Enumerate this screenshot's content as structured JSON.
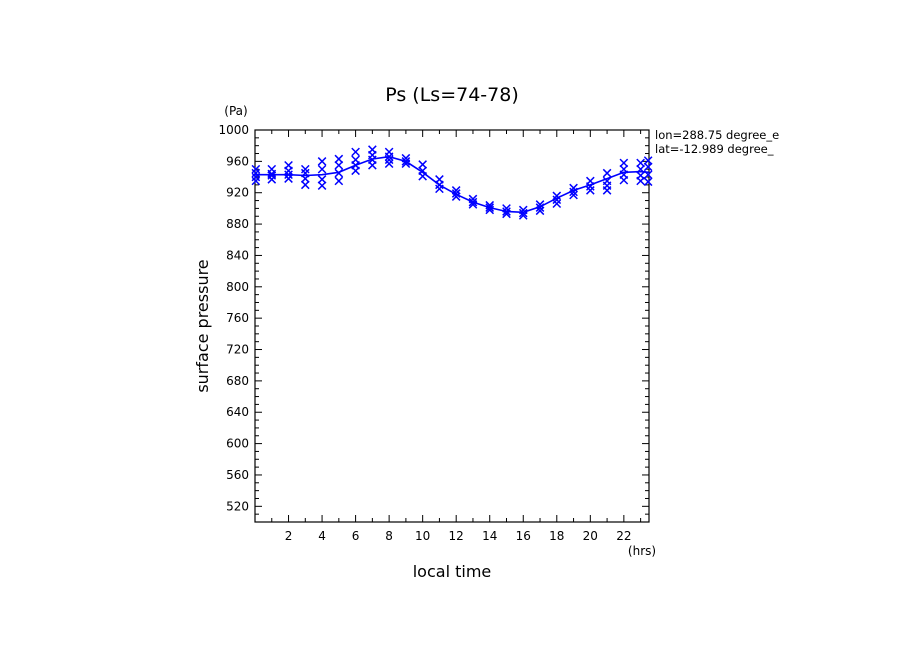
{
  "chart_data": {
    "type": "line",
    "title": "Ps (Ls=74-78)",
    "xlabel": "local time",
    "ylabel": "surface pressure",
    "xunit": "(hrs)",
    "yunit": "(Pa)",
    "xlim": [
      0,
      23.5
    ],
    "ylim": [
      500,
      1000
    ],
    "xticks": [
      "2",
      "4",
      "6",
      "8",
      "10",
      "12",
      "14",
      "16",
      "18",
      "20",
      "22"
    ],
    "yticks": [
      "520",
      "560",
      "600",
      "640",
      "680",
      "720",
      "760",
      "800",
      "840",
      "880",
      "920",
      "960",
      "1000"
    ],
    "annotations": [
      "lon=288.75 degree_e",
      "lat=-12.989 degree_"
    ],
    "color": "#0000ff",
    "series": [
      {
        "kind": "line",
        "x": [
          0,
          1,
          2,
          3,
          4,
          5,
          6,
          7,
          8,
          9,
          10,
          11,
          12,
          13,
          14,
          15,
          16,
          17,
          18,
          19,
          20,
          21,
          22,
          23,
          23.5
        ],
        "y": [
          943,
          943,
          943,
          942,
          943,
          946,
          955,
          963,
          966,
          960,
          946,
          930,
          918,
          908,
          901,
          896,
          895,
          902,
          913,
          923,
          930,
          938,
          946,
          947,
          946
        ]
      },
      {
        "kind": "scatter",
        "marker": "x",
        "x": [
          0.05,
          0.05,
          0.05,
          0.05,
          1,
          1,
          1,
          1,
          2,
          2,
          2,
          2,
          3,
          3,
          3,
          3,
          4,
          4,
          4,
          4,
          5,
          5,
          5,
          5,
          6,
          6,
          6,
          6,
          7,
          7,
          7,
          7,
          8,
          8,
          8,
          8,
          9,
          9,
          9,
          10,
          10,
          10,
          11,
          11,
          11,
          12,
          12,
          12,
          13,
          13,
          13,
          14,
          14,
          14,
          15,
          15,
          15,
          16,
          16,
          16,
          17,
          17,
          17,
          18,
          18,
          18,
          19,
          19,
          19,
          20,
          20,
          20,
          21,
          21,
          21,
          21,
          22,
          22,
          22,
          22,
          23,
          23,
          23,
          23,
          23.45,
          23.45,
          23.45,
          23.45
        ],
        "y": [
          950,
          945,
          940,
          935,
          950,
          944,
          942,
          937,
          955,
          948,
          943,
          938,
          950,
          945,
          938,
          930,
          960,
          950,
          937,
          929,
          963,
          955,
          945,
          935,
          972,
          962,
          955,
          948,
          975,
          968,
          962,
          955,
          972,
          966,
          962,
          957,
          964,
          960,
          957,
          956,
          948,
          941,
          937,
          930,
          925,
          923,
          919,
          915,
          912,
          908,
          905,
          904,
          901,
          898,
          900,
          896,
          893,
          898,
          894,
          891,
          905,
          901,
          897,
          916,
          911,
          906,
          926,
          921,
          917,
          935,
          928,
          923,
          945,
          935,
          929,
          923,
          958,
          950,
          943,
          936,
          958,
          950,
          942,
          935,
          961,
          953,
          943,
          934
        ]
      }
    ]
  }
}
